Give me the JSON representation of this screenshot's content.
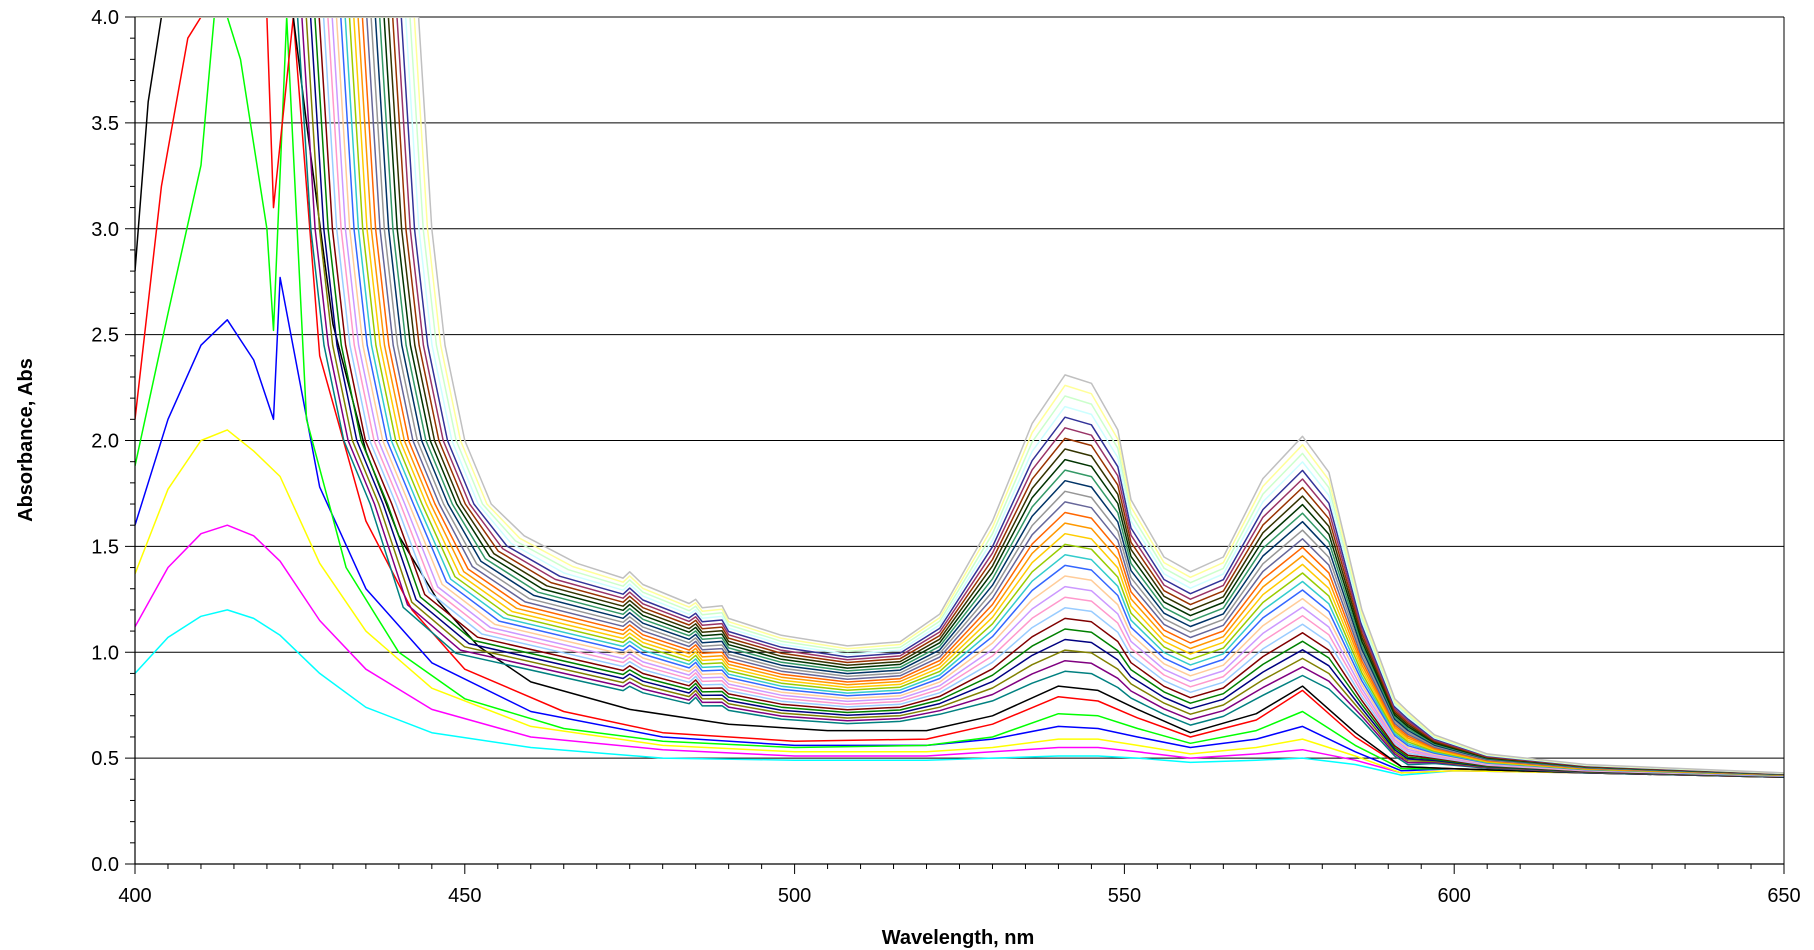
{
  "chart_data": {
    "type": "line",
    "title": "",
    "xlabel": "Wavelength, nm",
    "ylabel": "Absorbance, Abs",
    "xlim": [
      400,
      650
    ],
    "ylim": [
      0.0,
      4.0
    ],
    "x_ticks": [
      400,
      450,
      500,
      550,
      600,
      650
    ],
    "x_tick_labels": [
      "400",
      "450",
      "500",
      "550",
      "600",
      "650"
    ],
    "x_minor_step": 5,
    "y_ticks": [
      0.0,
      0.5,
      1.0,
      1.5,
      2.0,
      2.5,
      3.0,
      3.5,
      4.0
    ],
    "y_tick_labels": [
      "0.0",
      "0.5",
      "1.0",
      "1.5",
      "2.0",
      "2.5",
      "3.0",
      "3.5",
      "4.0"
    ],
    "y_minor_step": 0.1,
    "grid": "horizontal major gridlines",
    "legend": "none",
    "series_colors": [
      "#00ffff",
      "#ff00ff",
      "#ffff00",
      "#0000ff",
      "#00ff00",
      "#ff0000",
      "#000000",
      "#008080",
      "#800080",
      "#808000",
      "#000080",
      "#008000",
      "#800000",
      "#99ccff",
      "#ff99cc",
      "#cc99ff",
      "#ffcc99",
      "#3366ff",
      "#33cccc",
      "#99cc00",
      "#ffcc00",
      "#ff9900",
      "#ff6600",
      "#666699",
      "#969696",
      "#003366",
      "#339966",
      "#003300",
      "#333300",
      "#993300",
      "#993366",
      "#333399",
      "#ccffff",
      "#ccffcc",
      "#ffff99",
      "#c0c0c0"
    ],
    "series": [
      {
        "x": [
          400,
          405,
          410,
          414,
          418,
          422,
          428,
          435,
          445,
          460,
          480,
          500,
          520,
          530,
          540,
          546,
          552,
          560,
          570,
          577,
          585,
          592,
          600,
          620,
          650
        ],
        "y": [
          0.9,
          1.07,
          1.17,
          1.2,
          1.16,
          1.08,
          0.9,
          0.74,
          0.62,
          0.55,
          0.5,
          0.49,
          0.49,
          0.5,
          0.51,
          0.51,
          0.5,
          0.48,
          0.49,
          0.5,
          0.47,
          0.42,
          0.44,
          0.43,
          0.41
        ]
      },
      {
        "x": [
          400,
          405,
          410,
          414,
          418,
          422,
          428,
          435,
          445,
          460,
          480,
          500,
          520,
          530,
          540,
          546,
          552,
          560,
          570,
          577,
          585,
          592,
          600,
          620,
          650
        ],
        "y": [
          1.12,
          1.4,
          1.56,
          1.6,
          1.55,
          1.43,
          1.15,
          0.92,
          0.73,
          0.6,
          0.54,
          0.51,
          0.51,
          0.53,
          0.55,
          0.55,
          0.53,
          0.5,
          0.52,
          0.54,
          0.49,
          0.43,
          0.44,
          0.43,
          0.41
        ]
      },
      {
        "x": [
          400,
          405,
          410,
          414,
          418,
          422,
          428,
          435,
          445,
          460,
          480,
          500,
          520,
          530,
          540,
          546,
          552,
          560,
          570,
          577,
          585,
          592,
          600,
          620,
          650
        ],
        "y": [
          1.37,
          1.77,
          2.0,
          2.05,
          1.95,
          1.83,
          1.42,
          1.1,
          0.83,
          0.65,
          0.56,
          0.53,
          0.53,
          0.55,
          0.59,
          0.59,
          0.56,
          0.52,
          0.55,
          0.59,
          0.51,
          0.43,
          0.44,
          0.43,
          0.41
        ]
      },
      {
        "x": [
          400,
          405,
          410,
          414,
          418,
          421,
          422,
          428,
          435,
          445,
          460,
          480,
          500,
          520,
          530,
          540,
          546,
          552,
          560,
          570,
          577,
          585,
          592,
          600,
          620,
          650
        ],
        "y": [
          1.6,
          2.1,
          2.45,
          2.57,
          2.38,
          2.1,
          2.77,
          1.78,
          1.3,
          0.95,
          0.72,
          0.6,
          0.56,
          0.56,
          0.59,
          0.65,
          0.64,
          0.6,
          0.55,
          0.59,
          0.65,
          0.53,
          0.44,
          0.45,
          0.43,
          0.41
        ]
      },
      {
        "x": [
          400,
          405,
          410,
          412,
          414,
          416,
          418,
          420,
          421,
          423,
          426,
          432,
          440,
          450,
          465,
          480,
          500,
          520,
          530,
          540,
          546,
          552,
          560,
          570,
          577,
          585,
          592,
          600,
          620,
          650
        ],
        "y": [
          1.88,
          2.6,
          3.3,
          4.0,
          4.0,
          3.8,
          3.4,
          3.0,
          2.52,
          4.0,
          2.1,
          1.4,
          1.0,
          0.78,
          0.64,
          0.58,
          0.55,
          0.56,
          0.6,
          0.71,
          0.7,
          0.64,
          0.57,
          0.63,
          0.72,
          0.56,
          0.45,
          0.45,
          0.43,
          0.41
        ]
      },
      {
        "x": [
          400,
          404,
          408,
          410,
          420,
          421,
          424,
          428,
          435,
          442,
          450,
          465,
          480,
          500,
          520,
          530,
          540,
          546,
          552,
          560,
          570,
          577,
          585,
          592,
          600,
          620,
          650
        ],
        "y": [
          2.1,
          3.2,
          3.9,
          4.0,
          4.0,
          3.1,
          4.0,
          2.4,
          1.62,
          1.2,
          0.92,
          0.72,
          0.62,
          0.58,
          0.59,
          0.66,
          0.79,
          0.77,
          0.69,
          0.6,
          0.68,
          0.82,
          0.6,
          0.46,
          0.45,
          0.43,
          0.41
        ]
      },
      {
        "x": [
          400,
          402,
          404,
          424,
          426,
          430,
          435,
          440,
          446,
          452,
          460,
          475,
          490,
          505,
          520,
          530,
          540,
          546,
          552,
          560,
          570,
          577,
          585,
          592,
          600,
          620,
          650
        ],
        "y": [
          2.8,
          3.6,
          4.0,
          4.0,
          3.5,
          2.55,
          1.95,
          1.55,
          1.24,
          1.03,
          0.86,
          0.73,
          0.66,
          0.63,
          0.63,
          0.7,
          0.84,
          0.82,
          0.73,
          0.62,
          0.71,
          0.84,
          0.62,
          0.46,
          0.45,
          0.43,
          0.41
        ]
      }
    ],
    "series_generation": "Remaining spectra (colors 8-36) form a smooth family between the last listed trace and an uppermost envelope: baseline near 508 nm rising from about 0.65 to 1.03, peak at 541 nm rising from about 0.86 to 2.31, shoulder at 547 nm 2.28, peak at 577 nm rising from about 0.85 to 2.02, trough at 560 nm from 0.63 to 1.38; steep edges cross 4.0 between 425 and 445 nm; all converge near 0.42 beyond 600 nm."
  }
}
